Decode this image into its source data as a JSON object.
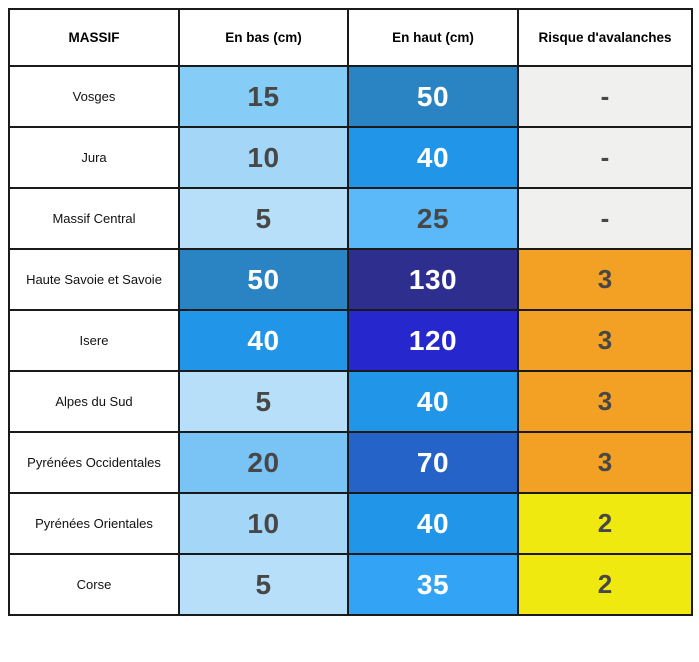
{
  "table": {
    "headers": {
      "massif": "MASSIF",
      "en_bas": "En bas (cm)",
      "en_haut": "En haut (cm)",
      "risque": "Risque d'avalanches"
    },
    "rows": [
      {
        "massif": "Vosges",
        "en_bas": {
          "value": "15",
          "bg": "#85CCF7",
          "fg": "#474747"
        },
        "en_haut": {
          "value": "50",
          "bg": "#2A84C4",
          "fg": "#ffffff"
        },
        "risque": {
          "value": "-",
          "bg": "#F0F0EE",
          "fg": "#474747"
        }
      },
      {
        "massif": "Jura",
        "en_bas": {
          "value": "10",
          "bg": "#A4D6F7",
          "fg": "#474747"
        },
        "en_haut": {
          "value": "40",
          "bg": "#2196E8",
          "fg": "#ffffff"
        },
        "risque": {
          "value": "-",
          "bg": "#F0F0EE",
          "fg": "#474747"
        }
      },
      {
        "massif": "Massif Central",
        "en_bas": {
          "value": "5",
          "bg": "#B8DFF9",
          "fg": "#474747"
        },
        "en_haut": {
          "value": "25",
          "bg": "#5BB9F9",
          "fg": "#474747"
        },
        "risque": {
          "value": "-",
          "bg": "#F0F0EE",
          "fg": "#474747"
        }
      },
      {
        "massif": "Haute Savoie et Savoie",
        "en_bas": {
          "value": "50",
          "bg": "#2A84C4",
          "fg": "#ffffff"
        },
        "en_haut": {
          "value": "130",
          "bg": "#2E2E8F",
          "fg": "#ffffff"
        },
        "risque": {
          "value": "3",
          "bg": "#F2A124",
          "fg": "#474747"
        }
      },
      {
        "massif": "Isere",
        "en_bas": {
          "value": "40",
          "bg": "#2196E8",
          "fg": "#ffffff"
        },
        "en_haut": {
          "value": "120",
          "bg": "#2727CE",
          "fg": "#ffffff"
        },
        "risque": {
          "value": "3",
          "bg": "#F2A124",
          "fg": "#474747"
        }
      },
      {
        "massif": "Alpes du Sud",
        "en_bas": {
          "value": "5",
          "bg": "#B8DFF9",
          "fg": "#474747"
        },
        "en_haut": {
          "value": "40",
          "bg": "#2196E8",
          "fg": "#ffffff"
        },
        "risque": {
          "value": "3",
          "bg": "#F2A124",
          "fg": "#474747"
        }
      },
      {
        "massif": "Pyrénées Occidentales",
        "en_bas": {
          "value": "20",
          "bg": "#7AC4F5",
          "fg": "#474747"
        },
        "en_haut": {
          "value": "70",
          "bg": "#2563C9",
          "fg": "#ffffff"
        },
        "risque": {
          "value": "3",
          "bg": "#F2A124",
          "fg": "#474747"
        }
      },
      {
        "massif": "Pyrénées Orientales",
        "en_bas": {
          "value": "10",
          "bg": "#A4D6F7",
          "fg": "#474747"
        },
        "en_haut": {
          "value": "40",
          "bg": "#2196E8",
          "fg": "#ffffff"
        },
        "risque": {
          "value": "2",
          "bg": "#F0E90F",
          "fg": "#474747"
        }
      },
      {
        "massif": "Corse",
        "en_bas": {
          "value": "5",
          "bg": "#B8DFF9",
          "fg": "#474747"
        },
        "en_haut": {
          "value": "35",
          "bg": "#33A3F5",
          "fg": "#ffffff"
        },
        "risque": {
          "value": "2",
          "bg": "#F0E90F",
          "fg": "#474747"
        }
      }
    ]
  },
  "colors": {
    "border": "#1a1a1a",
    "risk3_orange": "#F2A124",
    "risk2_yellow": "#F0E90F",
    "no_risk_gray": "#F0F0EE",
    "dark_number_text": "#474747"
  },
  "chart_data": {
    "type": "table",
    "columns": [
      "MASSIF",
      "En bas (cm)",
      "En haut (cm)",
      "Risque d'avalanches"
    ],
    "rows": [
      [
        "Vosges",
        15,
        50,
        "-"
      ],
      [
        "Jura",
        10,
        40,
        "-"
      ],
      [
        "Massif Central",
        5,
        25,
        "-"
      ],
      [
        "Haute Savoie et Savoie",
        50,
        130,
        3
      ],
      [
        "Isere",
        40,
        120,
        3
      ],
      [
        "Alpes du Sud",
        5,
        40,
        3
      ],
      [
        "Pyrénées Occidentales",
        20,
        70,
        3
      ],
      [
        "Pyrénées Orientales",
        10,
        40,
        2
      ],
      [
        "Corse",
        5,
        35,
        2
      ]
    ]
  }
}
